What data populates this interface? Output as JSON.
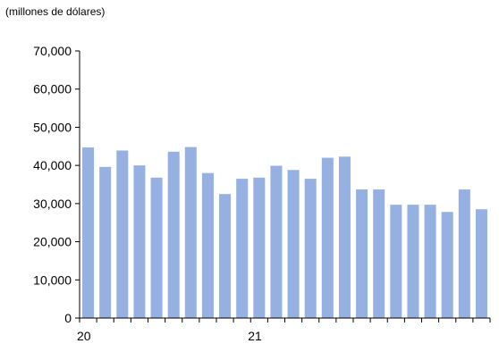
{
  "chart_data": {
    "type": "bar",
    "title": "",
    "unit_label": "(millones de dólares)",
    "xlabel": "",
    "ylabel": "",
    "ylim": [
      0,
      70000
    ],
    "yticks": [
      0,
      10000,
      20000,
      30000,
      40000,
      50000,
      60000,
      70000
    ],
    "ytick_labels": [
      "0",
      "10,000",
      "20,000",
      "30,000",
      "40,000",
      "50,000",
      "60,000",
      "70,000"
    ],
    "xtick_labels": [
      {
        "label": "20",
        "at_index": 0
      },
      {
        "label": "21",
        "at_index": 10
      }
    ],
    "grid": false,
    "bar_color": "#95b0e1",
    "values": [
      44700,
      39600,
      43900,
      40000,
      36800,
      43600,
      44800,
      38000,
      32500,
      36500,
      36800,
      39900,
      38800,
      36500,
      42000,
      42300,
      33700,
      33700,
      29700,
      29700,
      29700,
      27800,
      33700,
      28500
    ]
  }
}
